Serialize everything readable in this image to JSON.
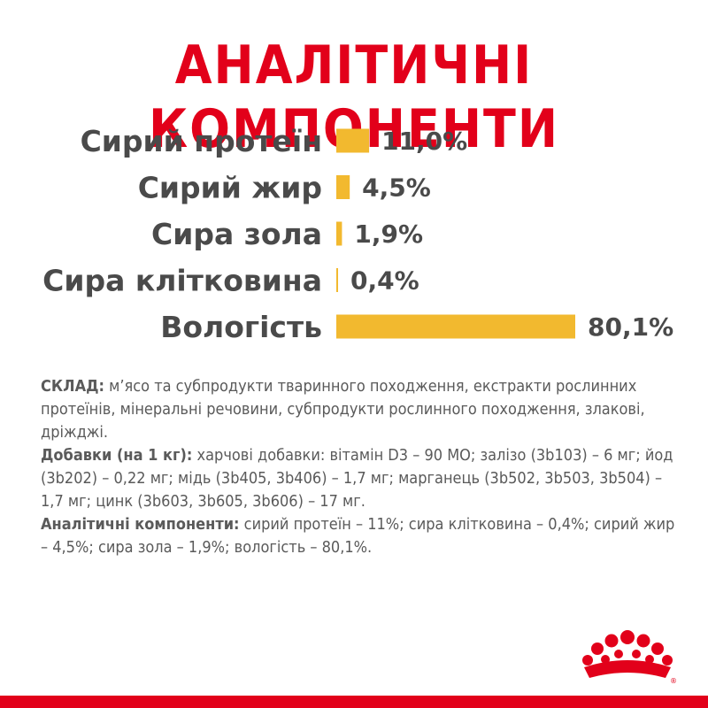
{
  "header": {
    "title": "АНАЛІТИЧНІ КОМПОНЕНТИ"
  },
  "chart_data": {
    "type": "bar",
    "categories": [
      "Сирий протеїн",
      "Сирий жир",
      "Сира зола",
      "Сира клітковина",
      "Вологість"
    ],
    "values": [
      11.0,
      4.5,
      1.9,
      0.4,
      80.1
    ],
    "value_labels": [
      "11,0%",
      "4,5%",
      "1,9%",
      "0,4%",
      "80,1%"
    ],
    "orientation": "horizontal",
    "bar_color": "#f2b92f",
    "xlim": [
      0,
      80.1
    ]
  },
  "composition": {
    "sklad_label": "СКЛАД:",
    "sklad_text": " м’ясо та субпродукти тваринного походження, екстракти рослинних протеїнів, мінеральні речовини, субпродукти рослинного походження, злакові, дріжджі.",
    "additives_label": "Добавки (на 1 кг):",
    "additives_text": " харчові добавки: вітамін D3 – 90 МО; залізо (3b103) – 6 мг; йод (3b202) – 0,22 мг; мідь (3b405, 3b406) – 1,7 мг; марганець (3b502, 3b503, 3b504) – 1,7 мг; цинк (3b603, 3b605, 3b606) – 17 мг.",
    "analytical_label": "Аналітичні компоненти:",
    "analytical_text": " сирий протеїн – 11%; сира клітковина – 0,4%; сирий жир – 4,5%; сира зола – 1,9%;  вологість – 80,1%."
  },
  "colors": {
    "accent_red": "#e2001a",
    "bar_yellow": "#f2b92f",
    "text_gray": "#4a4a4a"
  },
  "logo": {
    "name": "crown-logo"
  }
}
